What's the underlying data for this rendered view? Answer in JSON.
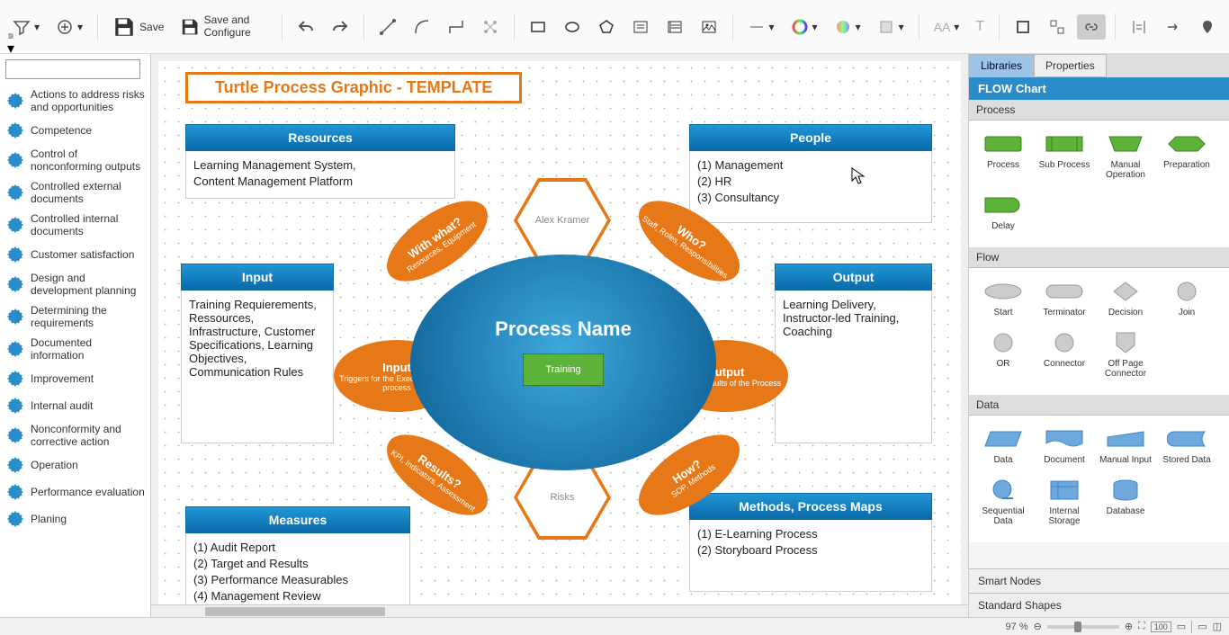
{
  "toolbar": {
    "save": "Save",
    "save_configure": "Save and Configure"
  },
  "sidebar": {
    "items": [
      "Actions to address risks and opportunities",
      "Competence",
      "Control of nonconforming outputs",
      "Controlled external documents",
      "Controlled internal documents",
      "Customer satisfaction",
      "Design and development planning",
      "Determining the requirements",
      "Documented information",
      "Improvement",
      "Internal audit",
      "Nonconformity and corrective action",
      "Operation",
      "Performance evaluation",
      "Planing"
    ]
  },
  "canvas": {
    "title": "Turtle Process Graphic - TEMPLATE",
    "resources": {
      "header": "Resources",
      "body": [
        "Learning Management System,",
        "Content Management Platform"
      ]
    },
    "people": {
      "header": "People",
      "body": [
        "(1) Management",
        "(2) HR",
        "(3) Consultancy"
      ]
    },
    "input": {
      "header": "Input",
      "body": [
        "Training Requierements, Ressources, Infrastructure, Customer Specifications, Learning Objectives, Communication Rules"
      ]
    },
    "output": {
      "header": "Output",
      "body": [
        "Learning Delivery, Instructor-led Training, Coaching"
      ]
    },
    "measures": {
      "header": "Measures",
      "body": [
        "(1) Audit Report",
        "(2) Target and Results",
        "(3) Performance Measurables",
        "(4) Management Review"
      ]
    },
    "methods": {
      "header": "Methods, Process Maps",
      "body": [
        "(1) E-Learning Process",
        "(2) Storyboard Process"
      ]
    },
    "center": {
      "name": "Process Name",
      "sub": "Training"
    },
    "hex_top": "Alex Kramer",
    "hex_bottom": "Risks",
    "petals": {
      "tl": {
        "t": "With what?",
        "s": "Resources, Equipment"
      },
      "tr": {
        "t": "Who?",
        "s": "Staff, Roles, Responsibilities"
      },
      "l": {
        "t": "Input",
        "s": "Triggers for the Execution fo the process"
      },
      "r": {
        "t": "Output",
        "s": "Describe results of the Process"
      },
      "bl": {
        "t": "Results?",
        "s": "KPI, Indicators, Assessment"
      },
      "br": {
        "t": "How?",
        "s": "SOP, Methods"
      }
    },
    "colors": {
      "orange": "#e67817",
      "blue_header": "#1a8fc9",
      "oval": "#1976a8",
      "green": "#5cb338"
    }
  },
  "right": {
    "tabs": [
      "Libraries",
      "Properties"
    ],
    "title": "FLOW Chart",
    "sections": {
      "process": {
        "label": "Process",
        "shapes": [
          "Process",
          "Sub Process",
          "Manual Operation",
          "Preparation",
          "Delay"
        ]
      },
      "flow": {
        "label": "Flow",
        "shapes": [
          "Start",
          "Terminator",
          "Decision",
          "Join",
          "OR",
          "Connector",
          "Off Page Connector"
        ]
      },
      "data": {
        "label": "Data",
        "shapes": [
          "Data",
          "Document",
          "Manual Input",
          "Stored Data",
          "Sequential Data",
          "Internal Storage",
          "Database"
        ]
      }
    },
    "bottom": [
      "Smart Nodes",
      "Standard Shapes"
    ]
  },
  "status": {
    "zoom": "97 %"
  }
}
